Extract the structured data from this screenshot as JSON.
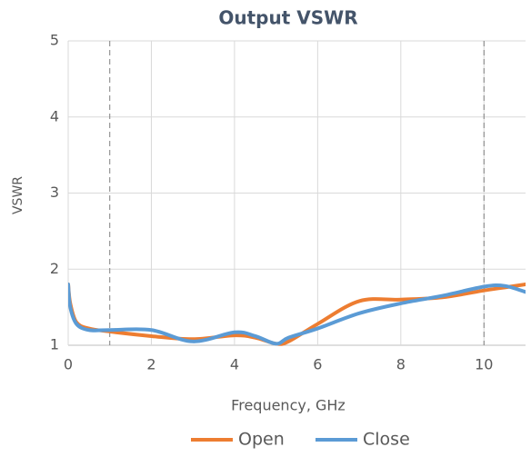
{
  "chart_data": {
    "type": "line",
    "title": "Output VSWR",
    "x_label": "Frequency, GHz",
    "y_label": "VSWR",
    "x": [
      0,
      0.05,
      0.2,
      0.5,
      1,
      2,
      3,
      4,
      4.5,
      5,
      5.3,
      6,
      7,
      8,
      9,
      10,
      10.5,
      11
    ],
    "series": [
      {
        "name": "Open",
        "color": "#ed7d31",
        "values": [
          1.8,
          1.55,
          1.3,
          1.22,
          1.18,
          1.12,
          1.08,
          1.13,
          1.1,
          1.02,
          1.05,
          1.28,
          1.58,
          1.6,
          1.63,
          1.72,
          1.76,
          1.8
        ]
      },
      {
        "name": "Close",
        "color": "#5b9bd5",
        "values": [
          1.8,
          1.5,
          1.28,
          1.2,
          1.2,
          1.2,
          1.05,
          1.17,
          1.12,
          1.02,
          1.1,
          1.22,
          1.42,
          1.55,
          1.65,
          1.77,
          1.78,
          1.7
        ]
      }
    ],
    "xlim": [
      0,
      11
    ],
    "xticks": [
      0,
      2,
      4,
      6,
      8,
      10
    ],
    "ylim": [
      1,
      5
    ],
    "yticks": [
      1,
      2,
      3,
      4,
      5
    ],
    "reference_lines_x": [
      1,
      10
    ],
    "grid": true,
    "legend": "bottom"
  }
}
